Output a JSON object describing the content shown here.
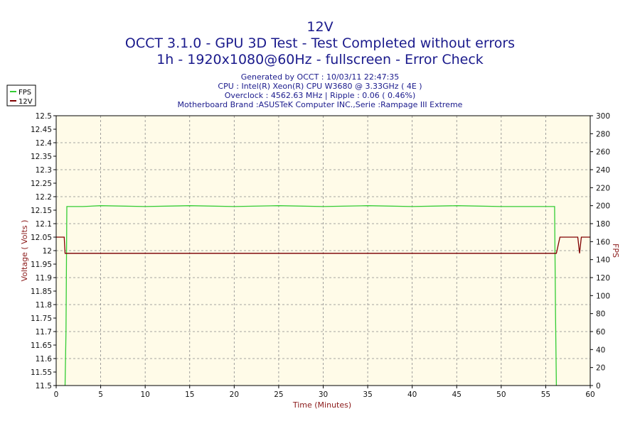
{
  "chart_data": {
    "type": "line",
    "title_lines": [
      "12V",
      "OCCT 3.1.0 - GPU 3D Test - Test Completed without errors",
      "1h - 1920x1080@60Hz - fullscreen - Error Check"
    ],
    "info_lines": [
      "Generated by OCCT : 10/03/11 22:47:35",
      "CPU : Intel(R) Xeon(R) CPU W3680 @ 3.33GHz ( 4E )",
      "Overclock : 4562.63 MHz | Ripple : 0.06 ( 0.46%)",
      "Motherboard Brand :ASUSTeK Computer INC.,Serie :Rampage III Extreme"
    ],
    "xlabel": "Time (Minutes)",
    "ylabel_left": "Voltage ( Volts )",
    "ylabel_right": "FPS",
    "xlim": [
      0,
      60
    ],
    "ylim_left": [
      11.5,
      12.5
    ],
    "ylim_right": [
      0,
      300
    ],
    "x_ticks": [
      0,
      5,
      10,
      15,
      20,
      25,
      30,
      35,
      40,
      45,
      50,
      55,
      60
    ],
    "y_left_ticks": [
      "11.5",
      "11.55",
      "11.6",
      "11.65",
      "11.7",
      "11.75",
      "11.8",
      "11.85",
      "11.9",
      "11.95",
      "12",
      "12.05",
      "12.1",
      "12.15",
      "12.2",
      "12.25",
      "12.3",
      "12.35",
      "12.4",
      "12.45",
      "12.5"
    ],
    "y_right_ticks": [
      0,
      20,
      40,
      60,
      80,
      100,
      120,
      140,
      160,
      180,
      200,
      220,
      240,
      260,
      280,
      300
    ],
    "grid": true,
    "legend_position": "top-left",
    "series": [
      {
        "name": "FPS",
        "axis": "right",
        "color": "#33cc33",
        "x": [
          1.0,
          1.1,
          1.2,
          3,
          5,
          10,
          15,
          20,
          25,
          30,
          35,
          40,
          45,
          50,
          55,
          56.0,
          56.1,
          56.2
        ],
        "values": [
          0,
          60,
          199,
          199,
          200,
          199,
          200,
          199,
          200,
          199,
          200,
          199,
          200,
          199,
          199,
          199,
          80,
          0
        ]
      },
      {
        "name": "12V",
        "axis": "left",
        "color": "#800000",
        "x": [
          0,
          0.9,
          1.0,
          1.2,
          30,
          56.2,
          56.6,
          57.0,
          58.6,
          58.8,
          59.0,
          59.2,
          60
        ],
        "values": [
          12.05,
          12.05,
          11.99,
          11.99,
          11.99,
          11.99,
          12.05,
          12.05,
          12.05,
          11.99,
          12.05,
          12.05,
          12.05
        ]
      }
    ],
    "colors": {
      "plot_bg": "#fffbe8",
      "frame": "#000000",
      "grid": "#888888",
      "title": "#1a1a8c",
      "axis_label": "#8b1a1a",
      "baseline": "#2a2a8c"
    }
  }
}
